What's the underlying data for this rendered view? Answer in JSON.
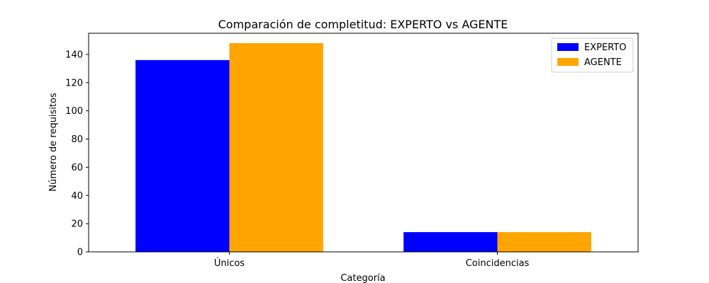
{
  "chart_data": {
    "type": "bar",
    "title": "Comparación de completitud: EXPERTO vs AGENTE",
    "xlabel": "Categoría",
    "ylabel": "Número de requisitos",
    "categories": [
      "Únicos",
      "Coincidencias"
    ],
    "series": [
      {
        "name": "EXPERTO",
        "values": [
          136,
          14
        ],
        "color": "#0000ff"
      },
      {
        "name": "AGENTE",
        "values": [
          148,
          14
        ],
        "color": "#ffa500"
      }
    ],
    "ylim": [
      0,
      155
    ],
    "yticks": [
      0,
      20,
      40,
      60,
      80,
      100,
      120,
      140
    ],
    "grid": false,
    "legend_position": "top-right"
  }
}
